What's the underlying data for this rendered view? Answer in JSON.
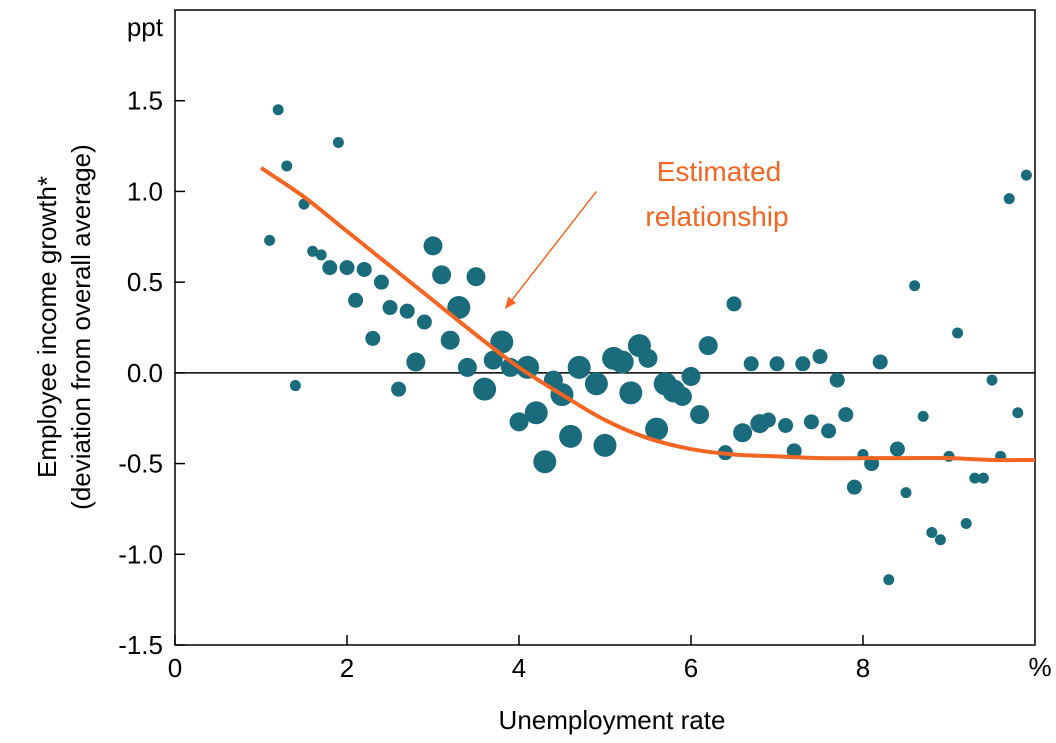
{
  "chart_data": {
    "type": "scatter",
    "title": "",
    "xlabel": "Unemployment rate",
    "ylabel_line1": "Employee income growth*",
    "ylabel_line2": "(deviation from overall average)",
    "x_unit": "%",
    "y_unit": "ppt",
    "xlim": [
      0,
      10
    ],
    "ylim": [
      -1.5,
      2.0
    ],
    "xticks": [
      0,
      2,
      4,
      6,
      8
    ],
    "yticks": [
      -1.5,
      -1.0,
      -0.5,
      0.0,
      0.5,
      1.0,
      1.5
    ],
    "ytick_labels": [
      "-1.5",
      "-1.0",
      "-0.5",
      "0.0",
      "0.5",
      "1.0",
      "1.5"
    ],
    "xtick_labels": [
      "0",
      "2",
      "4",
      "6",
      "8"
    ],
    "zero_line": true,
    "grid": false,
    "colors": {
      "points": "#1a6b7c",
      "fit": "#f26522",
      "axis": "#000000"
    },
    "annotation": {
      "line1": "Estimated",
      "line2": "relationship",
      "arrow_from": [
        4.9,
        1.0
      ],
      "arrow_to": [
        3.85,
        0.36
      ]
    },
    "series": [
      {
        "type": "scatter",
        "points": [
          {
            "x": 1.1,
            "y": 0.73,
            "size": "s"
          },
          {
            "x": 1.2,
            "y": 1.45,
            "size": "s"
          },
          {
            "x": 1.3,
            "y": 1.14,
            "size": "s"
          },
          {
            "x": 1.4,
            "y": -0.07,
            "size": "s"
          },
          {
            "x": 1.5,
            "y": 0.93,
            "size": "s"
          },
          {
            "x": 1.6,
            "y": 0.67,
            "size": "s"
          },
          {
            "x": 1.7,
            "y": 0.65,
            "size": "s"
          },
          {
            "x": 1.8,
            "y": 0.58,
            "size": "m"
          },
          {
            "x": 1.9,
            "y": 1.27,
            "size": "s"
          },
          {
            "x": 2.0,
            "y": 0.58,
            "size": "m"
          },
          {
            "x": 2.1,
            "y": 0.4,
            "size": "m"
          },
          {
            "x": 2.2,
            "y": 0.57,
            "size": "m"
          },
          {
            "x": 2.3,
            "y": 0.19,
            "size": "m"
          },
          {
            "x": 2.4,
            "y": 0.5,
            "size": "m"
          },
          {
            "x": 2.5,
            "y": 0.36,
            "size": "m"
          },
          {
            "x": 2.6,
            "y": -0.09,
            "size": "m"
          },
          {
            "x": 2.7,
            "y": 0.34,
            "size": "m"
          },
          {
            "x": 2.8,
            "y": 0.06,
            "size": "l"
          },
          {
            "x": 2.9,
            "y": 0.28,
            "size": "m"
          },
          {
            "x": 3.0,
            "y": 0.7,
            "size": "l"
          },
          {
            "x": 3.1,
            "y": 0.54,
            "size": "l"
          },
          {
            "x": 3.2,
            "y": 0.18,
            "size": "l"
          },
          {
            "x": 3.3,
            "y": 0.36,
            "size": "xl"
          },
          {
            "x": 3.4,
            "y": 0.03,
            "size": "l"
          },
          {
            "x": 3.5,
            "y": 0.53,
            "size": "l"
          },
          {
            "x": 3.6,
            "y": -0.09,
            "size": "xl"
          },
          {
            "x": 3.7,
            "y": 0.07,
            "size": "l"
          },
          {
            "x": 3.8,
            "y": 0.17,
            "size": "xl"
          },
          {
            "x": 3.9,
            "y": 0.03,
            "size": "l"
          },
          {
            "x": 4.0,
            "y": -0.27,
            "size": "l"
          },
          {
            "x": 4.1,
            "y": 0.03,
            "size": "xl"
          },
          {
            "x": 4.2,
            "y": -0.22,
            "size": "xl"
          },
          {
            "x": 4.3,
            "y": -0.49,
            "size": "xl"
          },
          {
            "x": 4.4,
            "y": -0.04,
            "size": "l"
          },
          {
            "x": 4.5,
            "y": -0.12,
            "size": "xl"
          },
          {
            "x": 4.6,
            "y": -0.35,
            "size": "xl"
          },
          {
            "x": 4.7,
            "y": 0.03,
            "size": "xl"
          },
          {
            "x": 4.9,
            "y": -0.06,
            "size": "xl"
          },
          {
            "x": 5.0,
            "y": -0.4,
            "size": "xl"
          },
          {
            "x": 5.1,
            "y": 0.08,
            "size": "xl"
          },
          {
            "x": 5.2,
            "y": 0.06,
            "size": "xl"
          },
          {
            "x": 5.3,
            "y": -0.11,
            "size": "xl"
          },
          {
            "x": 5.4,
            "y": 0.15,
            "size": "xl"
          },
          {
            "x": 5.5,
            "y": 0.08,
            "size": "l"
          },
          {
            "x": 5.6,
            "y": -0.31,
            "size": "xl"
          },
          {
            "x": 5.7,
            "y": -0.06,
            "size": "xl"
          },
          {
            "x": 5.8,
            "y": -0.1,
            "size": "xl"
          },
          {
            "x": 5.9,
            "y": -0.13,
            "size": "l"
          },
          {
            "x": 6.0,
            "y": -0.02,
            "size": "l"
          },
          {
            "x": 6.1,
            "y": -0.23,
            "size": "l"
          },
          {
            "x": 6.2,
            "y": 0.15,
            "size": "l"
          },
          {
            "x": 6.4,
            "y": -0.44,
            "size": "m"
          },
          {
            "x": 6.5,
            "y": 0.38,
            "size": "m"
          },
          {
            "x": 6.6,
            "y": -0.33,
            "size": "l"
          },
          {
            "x": 6.7,
            "y": 0.05,
            "size": "m"
          },
          {
            "x": 6.8,
            "y": -0.28,
            "size": "l"
          },
          {
            "x": 6.9,
            "y": -0.26,
            "size": "m"
          },
          {
            "x": 7.0,
            "y": 0.05,
            "size": "m"
          },
          {
            "x": 7.1,
            "y": -0.29,
            "size": "m"
          },
          {
            "x": 7.2,
            "y": -0.43,
            "size": "m"
          },
          {
            "x": 7.3,
            "y": 0.05,
            "size": "m"
          },
          {
            "x": 7.4,
            "y": -0.27,
            "size": "m"
          },
          {
            "x": 7.5,
            "y": 0.09,
            "size": "m"
          },
          {
            "x": 7.6,
            "y": -0.32,
            "size": "m"
          },
          {
            "x": 7.7,
            "y": -0.04,
            "size": "m"
          },
          {
            "x": 7.8,
            "y": -0.23,
            "size": "m"
          },
          {
            "x": 7.9,
            "y": -0.63,
            "size": "m"
          },
          {
            "x": 8.0,
            "y": -0.45,
            "size": "s"
          },
          {
            "x": 8.1,
            "y": -0.5,
            "size": "m"
          },
          {
            "x": 8.2,
            "y": 0.06,
            "size": "m"
          },
          {
            "x": 8.3,
            "y": -1.14,
            "size": "s"
          },
          {
            "x": 8.4,
            "y": -0.42,
            "size": "m"
          },
          {
            "x": 8.5,
            "y": -0.66,
            "size": "s"
          },
          {
            "x": 8.6,
            "y": 0.48,
            "size": "s"
          },
          {
            "x": 8.7,
            "y": -0.24,
            "size": "s"
          },
          {
            "x": 8.8,
            "y": -0.88,
            "size": "s"
          },
          {
            "x": 8.9,
            "y": -0.92,
            "size": "s"
          },
          {
            "x": 9.0,
            "y": -0.46,
            "size": "s"
          },
          {
            "x": 9.1,
            "y": 0.22,
            "size": "s"
          },
          {
            "x": 9.2,
            "y": -0.83,
            "size": "s"
          },
          {
            "x": 9.3,
            "y": -0.58,
            "size": "s"
          },
          {
            "x": 9.4,
            "y": -0.58,
            "size": "s"
          },
          {
            "x": 9.5,
            "y": -0.04,
            "size": "s"
          },
          {
            "x": 9.6,
            "y": -0.46,
            "size": "s"
          },
          {
            "x": 9.7,
            "y": 0.96,
            "size": "s"
          },
          {
            "x": 9.8,
            "y": -0.22,
            "size": "s"
          },
          {
            "x": 9.9,
            "y": 1.09,
            "size": "s"
          }
        ]
      },
      {
        "type": "line",
        "x": [
          1.0,
          1.5,
          2.0,
          2.5,
          3.0,
          3.5,
          4.0,
          4.5,
          5.0,
          5.5,
          6.0,
          6.5,
          7.0,
          7.5,
          8.0,
          8.5,
          9.0,
          9.5,
          10.0
        ],
        "y": [
          1.13,
          0.97,
          0.78,
          0.59,
          0.4,
          0.21,
          0.03,
          -0.12,
          -0.26,
          -0.36,
          -0.42,
          -0.45,
          -0.46,
          -0.47,
          -0.47,
          -0.47,
          -0.47,
          -0.48,
          -0.48
        ]
      }
    ]
  }
}
